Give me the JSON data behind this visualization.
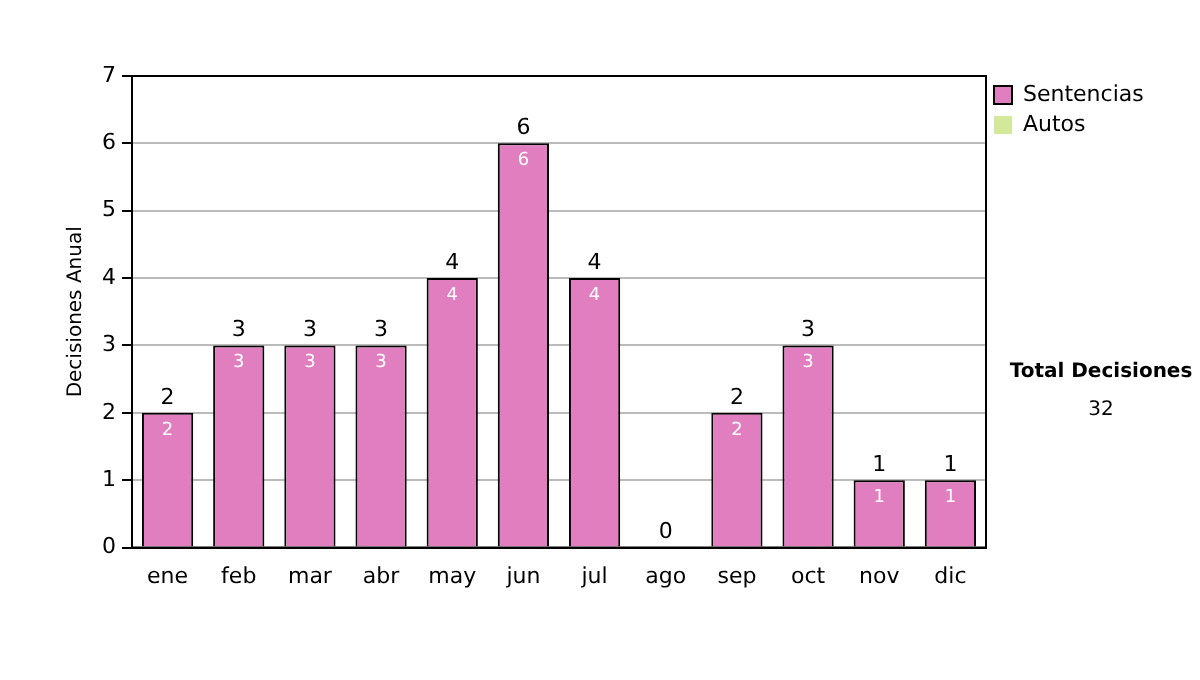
{
  "chart_data": {
    "type": "bar",
    "stacked": true,
    "ylabel": "Decisiones Anual",
    "categories": [
      "ene",
      "feb",
      "mar",
      "abr",
      "may",
      "jun",
      "jul",
      "ago",
      "sep",
      "oct",
      "nov",
      "dic"
    ],
    "series": [
      {
        "name": "Sentencias",
        "color": "#e07ec0",
        "values": [
          2,
          3,
          3,
          3,
          4,
          6,
          4,
          0,
          2,
          3,
          1,
          1
        ],
        "value_labels": [
          "2",
          "3",
          "3",
          "3",
          "4",
          "6",
          "4",
          null,
          "2",
          "3",
          "1",
          "1"
        ]
      },
      {
        "name": "Autos",
        "color": "#d4e89c",
        "values": [
          0,
          0,
          0,
          0,
          0,
          0,
          0,
          0,
          0,
          0,
          0,
          0
        ]
      }
    ],
    "totals": [
      "2",
      "3",
      "3",
      "3",
      "4",
      "6",
      "4",
      "0",
      "2",
      "3",
      "1",
      "1"
    ],
    "ylim": [
      0,
      7
    ],
    "yticks": [
      0,
      1,
      2,
      3,
      4,
      5,
      6,
      7
    ],
    "grid": "y",
    "legend": "right",
    "annotations": [
      "Total Decisiones",
      "32"
    ]
  }
}
